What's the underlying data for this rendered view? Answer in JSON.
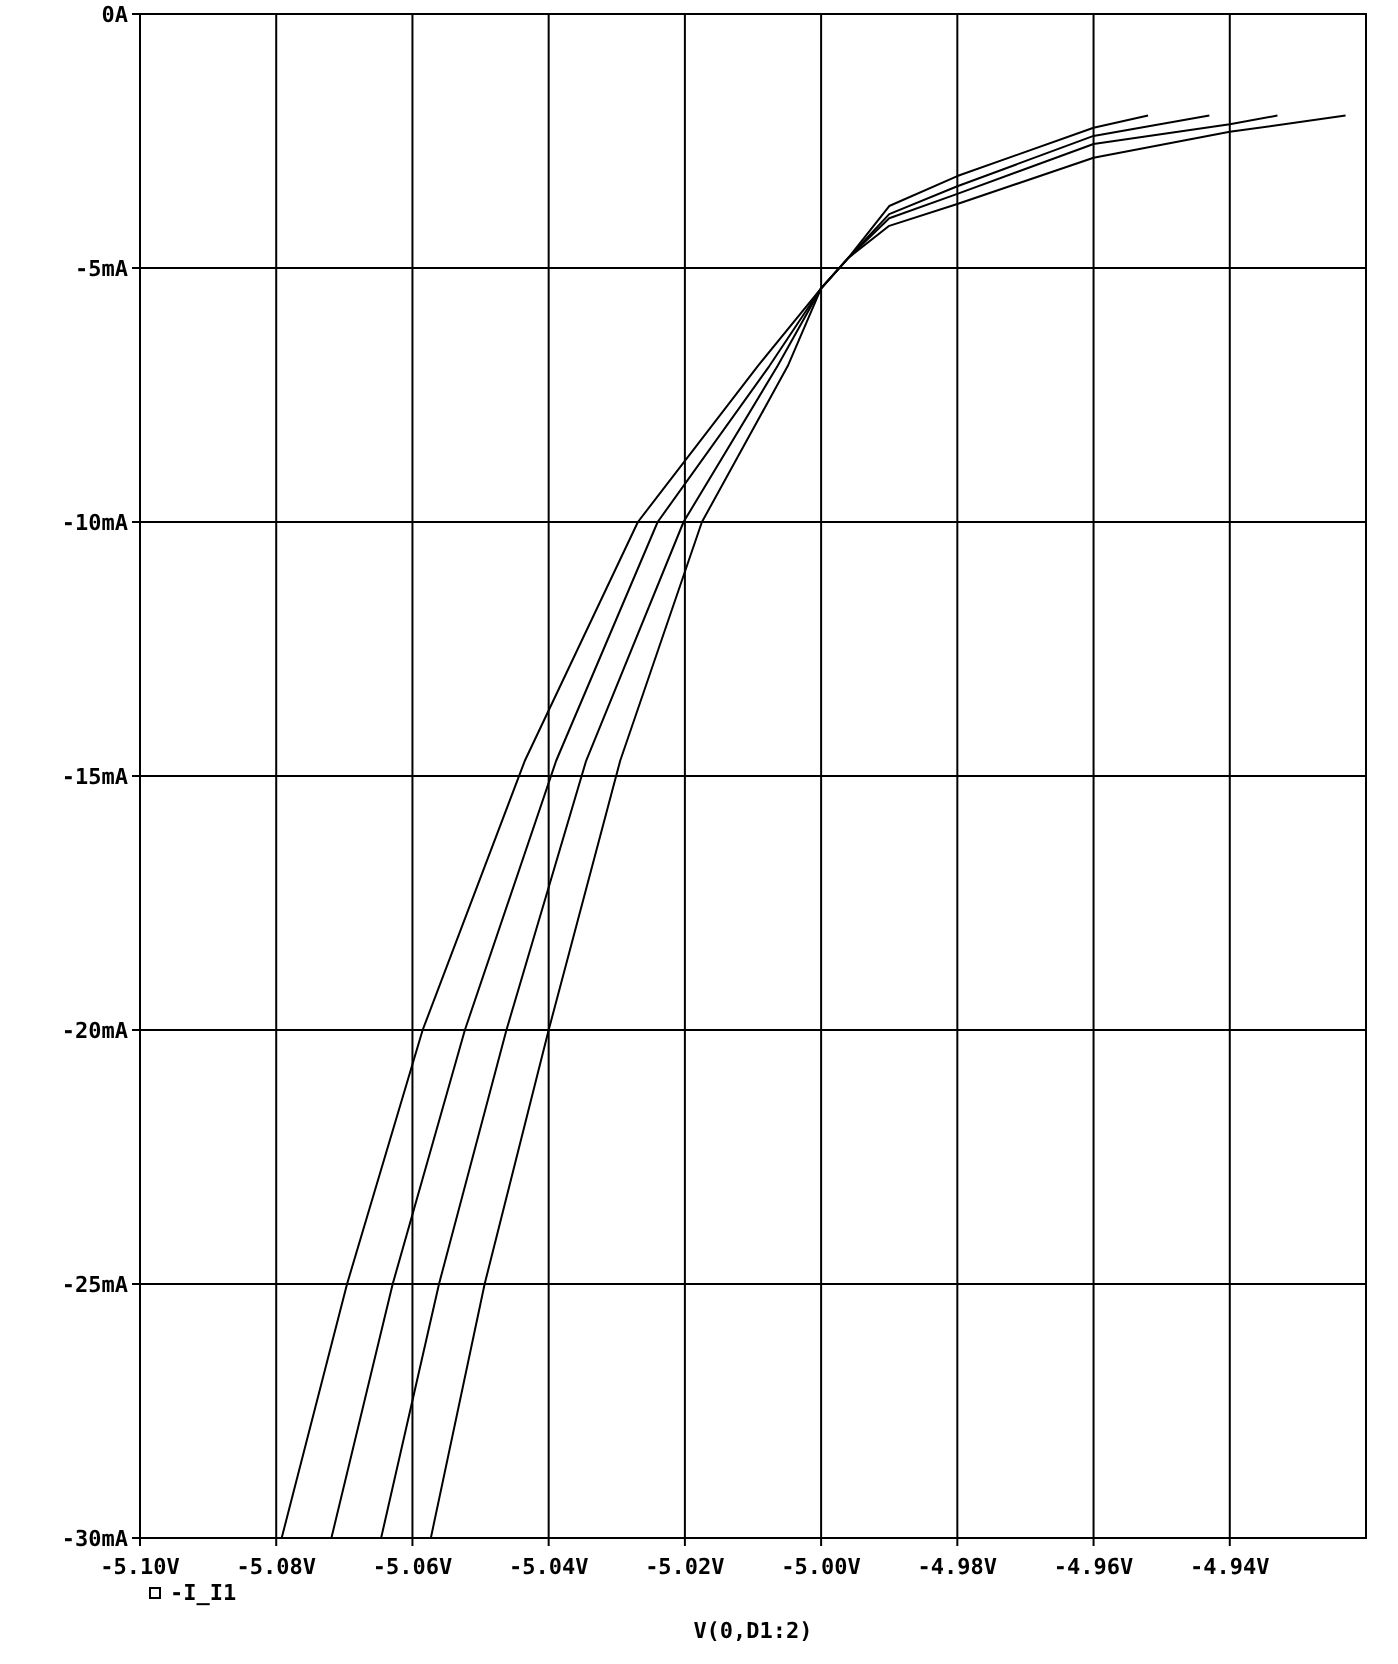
{
  "chart_data": {
    "type": "line",
    "xlabel": "V(0,D1:2)",
    "xlim": [
      -5.1,
      -4.92
    ],
    "ylim": [
      -30,
      0
    ],
    "xticks": [
      {
        "value": -5.1,
        "label": "-5.10V"
      },
      {
        "value": -5.08,
        "label": "-5.08V"
      },
      {
        "value": -5.06,
        "label": "-5.06V"
      },
      {
        "value": -5.04,
        "label": "-5.04V"
      },
      {
        "value": -5.02,
        "label": "-5.02V"
      },
      {
        "value": -5.0,
        "label": "-5.00V"
      },
      {
        "value": -4.98,
        "label": "-4.98V"
      },
      {
        "value": -4.96,
        "label": "-4.96V"
      },
      {
        "value": -4.94,
        "label": "-4.94V"
      }
    ],
    "yticks": [
      {
        "value": -30,
        "label": "-30mA"
      },
      {
        "value": -25,
        "label": "-25mA"
      },
      {
        "value": -20,
        "label": "-20mA"
      },
      {
        "value": -15,
        "label": "-15mA"
      },
      {
        "value": -10,
        "label": "-10mA"
      },
      {
        "value": -5,
        "label": "-5mA"
      },
      {
        "value": 0,
        "label": "0A"
      }
    ],
    "grid": true,
    "legend": "bottom left",
    "marker": "none",
    "line_style": "solid",
    "series": [
      {
        "name": "-I_I1",
        "color": "#000000",
        "x": [
          -5.0792,
          -5.0696,
          -5.0585,
          -5.0435,
          -5.0269,
          -5.0093,
          -5.0,
          -4.996,
          -4.99,
          -4.98,
          -4.96,
          -4.94,
          -4.923
        ],
        "values": [
          -30,
          -25,
          -20,
          -14.7,
          -10,
          -6.93,
          -5.4,
          -4.8,
          -4.17,
          -3.74,
          -2.83,
          -2.32,
          -2.0
        ]
      },
      {
        "color": "#000000",
        "x": [
          -5.0719,
          -5.0629,
          -5.0523,
          -5.0389,
          -5.024,
          -5.0076,
          -5.0,
          -4.996,
          -4.99,
          -4.98,
          -4.96,
          -4.94,
          -4.933
        ],
        "values": [
          -30,
          -25,
          -20,
          -14.7,
          -10,
          -6.93,
          -5.4,
          -4.8,
          -4.02,
          -3.54,
          -2.56,
          -2.17,
          -2.0
        ]
      },
      {
        "color": "#000000",
        "x": [
          -5.0646,
          -5.0561,
          -5.0462,
          -5.0345,
          -5.0202,
          -5.0064,
          -5.0,
          -4.996,
          -4.99,
          -4.98,
          -4.96,
          -4.943
        ],
        "values": [
          -30,
          -25,
          -20,
          -14.7,
          -10,
          -6.93,
          -5.4,
          -4.8,
          -3.94,
          -3.39,
          -2.4,
          -2.0
        ]
      },
      {
        "color": "#000000",
        "x": [
          -5.0573,
          -5.0494,
          -5.04,
          -5.0295,
          -5.0175,
          -5.0049,
          -5.0,
          -4.996,
          -4.99,
          -4.98,
          -4.96,
          -4.952
        ],
        "values": [
          -30,
          -25,
          -20,
          -14.7,
          -10,
          -6.93,
          -5.4,
          -4.8,
          -3.78,
          -3.19,
          -2.24,
          -2.0
        ]
      }
    ]
  }
}
